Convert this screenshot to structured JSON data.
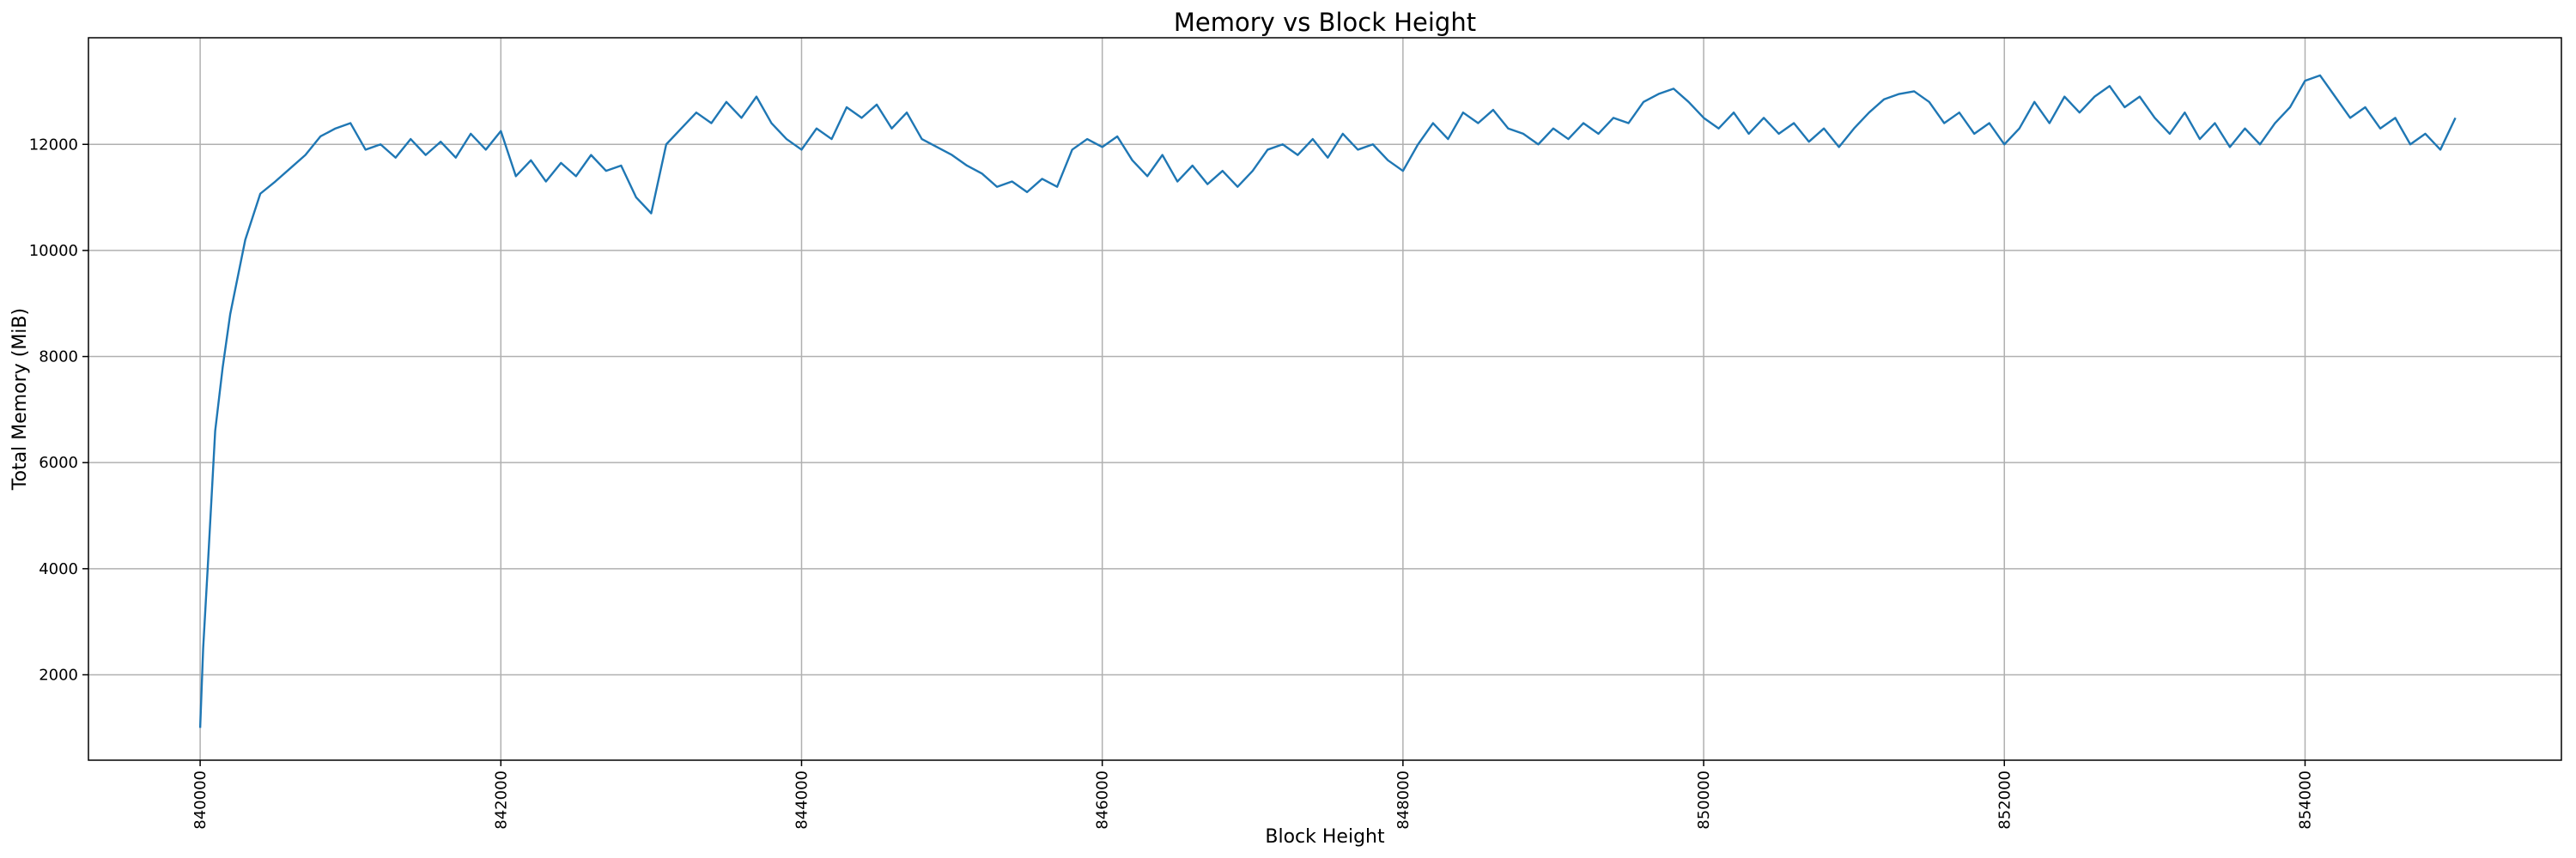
{
  "chart_data": {
    "type": "line",
    "title": "Memory vs Block Height",
    "x_label": "Block Height",
    "y_label": "Total Memory (MiB)",
    "xlim": [
      839257,
      855705
    ],
    "ylim": [
      390,
      14010
    ],
    "xticks": [
      840000,
      842000,
      844000,
      846000,
      848000,
      850000,
      852000,
      854000
    ],
    "yticks": [
      2000,
      4000,
      6000,
      8000,
      10000,
      12000
    ],
    "grid": true,
    "series": [
      {
        "color": "#1f77b4",
        "x": [
          840000,
          840020,
          840050,
          840100,
          840150,
          840200,
          840300,
          840400,
          840500,
          840600,
          840700,
          840800,
          840900,
          841000,
          841100,
          841200,
          841300,
          841400,
          841500,
          841600,
          841700,
          841800,
          841900,
          842000,
          842100,
          842200,
          842300,
          842400,
          842500,
          842600,
          842700,
          842800,
          842900,
          843000,
          843100,
          843200,
          843300,
          843400,
          843500,
          843600,
          843700,
          843800,
          843900,
          844000,
          844100,
          844200,
          844300,
          844400,
          844500,
          844600,
          844700,
          844800,
          844900,
          845000,
          845100,
          845200,
          845300,
          845400,
          845500,
          845600,
          845700,
          845800,
          845900,
          846000,
          846100,
          846200,
          846300,
          846400,
          846500,
          846600,
          846700,
          846800,
          846900,
          847000,
          847100,
          847200,
          847300,
          847400,
          847500,
          847600,
          847700,
          847800,
          847900,
          848000,
          848100,
          848200,
          848300,
          848400,
          848500,
          848600,
          848700,
          848800,
          848900,
          849000,
          849100,
          849200,
          849300,
          849400,
          849500,
          849600,
          849700,
          849800,
          849900,
          850000,
          850100,
          850200,
          850300,
          850400,
          850500,
          850600,
          850700,
          850800,
          850900,
          851000,
          851100,
          851200,
          851300,
          851400,
          851500,
          851600,
          851700,
          851800,
          851900,
          852000,
          852100,
          852200,
          852300,
          852400,
          852500,
          852600,
          852700,
          852800,
          852900,
          853000,
          853100,
          853200,
          853300,
          853400,
          853500,
          853600,
          853700,
          853800,
          853900,
          854000,
          854100,
          854200,
          854300,
          854400,
          854500,
          854600,
          854700,
          854800,
          854900,
          855000
        ],
        "values": [
          1000,
          2500,
          4000,
          6600,
          7800,
          8800,
          10200,
          11070,
          11300,
          11550,
          11800,
          12150,
          12300,
          12400,
          11900,
          12000,
          11750,
          12100,
          11800,
          12050,
          11750,
          12200,
          11900,
          12250,
          11400,
          11700,
          11300,
          11650,
          11400,
          11800,
          11500,
          11600,
          11000,
          10700,
          12000,
          12300,
          12600,
          12400,
          12800,
          12500,
          12900,
          12400,
          12100,
          11900,
          12300,
          12100,
          12700,
          12500,
          12750,
          12300,
          12600,
          12100,
          11950,
          11800,
          11600,
          11450,
          11200,
          11300,
          11100,
          11350,
          11200,
          11900,
          12100,
          11950,
          12150,
          11700,
          11400,
          11800,
          11300,
          11600,
          11250,
          11500,
          11200,
          11500,
          11900,
          12000,
          11800,
          12100,
          11750,
          12200,
          11900,
          12000,
          11700,
          11500,
          12000,
          12400,
          12100,
          12600,
          12400,
          12650,
          12300,
          12200,
          12000,
          12300,
          12100,
          12400,
          12200,
          12500,
          12400,
          12800,
          12950,
          13050,
          12800,
          12500,
          12300,
          12600,
          12200,
          12500,
          12200,
          12400,
          12050,
          12300,
          11950,
          12300,
          12600,
          12850,
          12950,
          13000,
          12800,
          12400,
          12600,
          12200,
          12400,
          12000,
          12300,
          12800,
          12400,
          12900,
          12600,
          12900,
          13100,
          12700,
          12900,
          12500,
          12200,
          12600,
          12100,
          12400,
          11950,
          12300,
          12000,
          12400,
          12700,
          13200,
          13300,
          12900,
          12500,
          12700,
          12300,
          12500,
          12000,
          12200,
          11900,
          12500
        ]
      }
    ]
  }
}
